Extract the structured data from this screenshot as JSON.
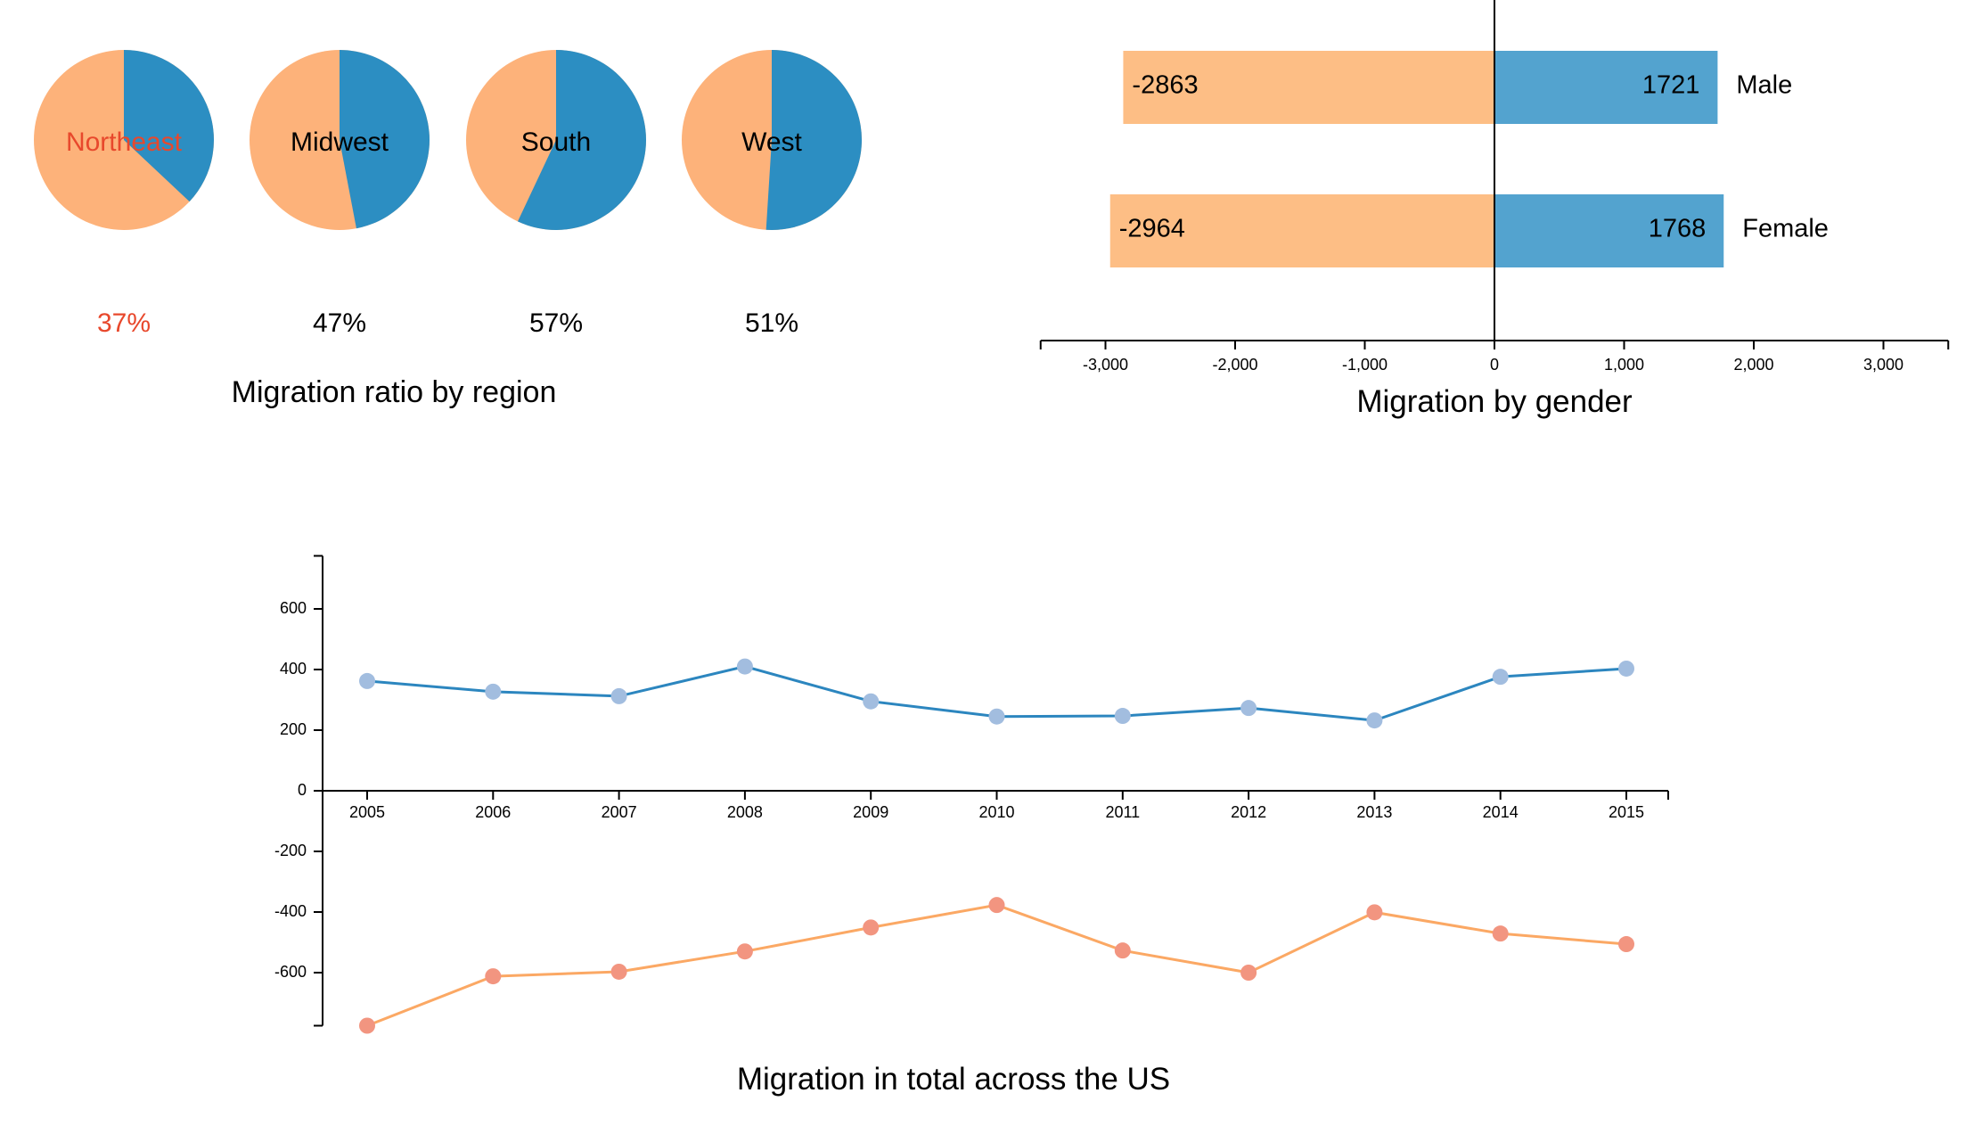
{
  "colors": {
    "orange_fill": "#FDB27A",
    "orange_bar": "#FDBE85",
    "orange_line": "#FBA864",
    "orange_dot": "#F29580",
    "blue_fill": "#2C8EC2",
    "blue_bar": "#53A3CF",
    "blue_line": "#2C86BF",
    "blue_dot": "#A2BDDF",
    "highlight_text": "#E8482C",
    "text": "#000000"
  },
  "chart_data": [
    {
      "type": "pie",
      "title": "Migration ratio by region",
      "pies": [
        {
          "label": "Northeast",
          "percent_label": "37%",
          "value": 0.37,
          "highlighted": true
        },
        {
          "label": "Midwest",
          "percent_label": "47%",
          "value": 0.47,
          "highlighted": false
        },
        {
          "label": "South",
          "percent_label": "57%",
          "value": 0.57,
          "highlighted": false
        },
        {
          "label": "West",
          "percent_label": "51%",
          "value": 0.51,
          "highlighted": false
        }
      ]
    },
    {
      "type": "bar",
      "orientation": "horizontal-diverging",
      "title": "Migration by gender",
      "categories": [
        "Male",
        "Female"
      ],
      "series": [
        {
          "values": [
            -2863,
            -2964
          ],
          "labels": [
            "-2863",
            "-2964"
          ]
        },
        {
          "values": [
            1721,
            1768
          ],
          "labels": [
            "1721",
            "1768"
          ]
        }
      ],
      "xlim": [
        -3500,
        3500
      ],
      "xticks": [
        -3000,
        -2000,
        -1000,
        0,
        1000,
        2000,
        3000
      ],
      "xtick_labels": [
        "-3,000",
        "-2,000",
        "-1,000",
        "0",
        "1,000",
        "2,000",
        "3,000"
      ]
    },
    {
      "type": "line",
      "title": "Migration in total across the US",
      "x": [
        "2005",
        "2006",
        "2007",
        "2008",
        "2009",
        "2010",
        "2011",
        "2012",
        "2013",
        "2014",
        "2015"
      ],
      "series": [
        {
          "values": [
            362,
            327,
            312,
            410,
            295,
            245,
            247,
            273,
            232,
            376,
            403
          ]
        },
        {
          "values": [
            -775,
            -612,
            -597,
            -530,
            -451,
            -377,
            -527,
            -600,
            -401,
            -471,
            -506
          ]
        }
      ],
      "ylim": [
        -775,
        775
      ],
      "yticks": [
        -600,
        -400,
        -200,
        0,
        200,
        400,
        600
      ],
      "ytick_labels": [
        "-600",
        "-400",
        "-200",
        "0",
        "200",
        "400",
        "600"
      ]
    }
  ]
}
